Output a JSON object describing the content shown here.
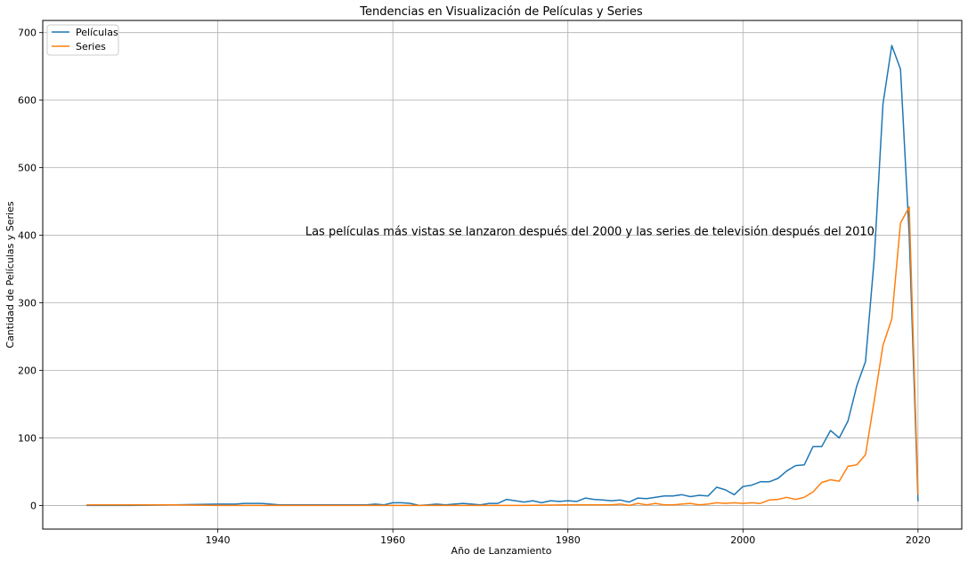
{
  "chart_data": {
    "type": "line",
    "title": "Tendencias en Visualización de Películas y Series",
    "xlabel": "Año de Lanzamiento",
    "ylabel": "Cantidad de Películas y Series",
    "xlim": [
      1920,
      2025
    ],
    "ylim": [
      -35,
      718
    ],
    "xticks": [
      1940,
      1960,
      1980,
      2000,
      2020
    ],
    "yticks": [
      0,
      100,
      200,
      300,
      400,
      500,
      600,
      700
    ],
    "grid": true,
    "legend_position": "top-left",
    "annotation": {
      "text": "Las películas más vistas se lanzaron después del 2000 y las series de televisión después del 2010",
      "x": 1950,
      "y": 400
    },
    "series": [
      {
        "name": "Películas",
        "color": "#1f77b4",
        "x": [
          1925,
          1930,
          1935,
          1940,
          1942,
          1943,
          1945,
          1946,
          1947,
          1950,
          1955,
          1957,
          1958,
          1959,
          1960,
          1961,
          1962,
          1963,
          1964,
          1965,
          1966,
          1967,
          1968,
          1969,
          1970,
          1971,
          1972,
          1973,
          1974,
          1975,
          1976,
          1977,
          1978,
          1979,
          1980,
          1981,
          1982,
          1983,
          1984,
          1985,
          1986,
          1987,
          1988,
          1989,
          1990,
          1991,
          1992,
          1993,
          1994,
          1995,
          1996,
          1997,
          1998,
          1999,
          2000,
          2001,
          2002,
          2003,
          2004,
          2005,
          2006,
          2007,
          2008,
          2009,
          2010,
          2011,
          2012,
          2013,
          2014,
          2015,
          2016,
          2017,
          2018,
          2019,
          2020
        ],
        "y": [
          0,
          0,
          1,
          2,
          2,
          3,
          3,
          2,
          1,
          1,
          1,
          1,
          2,
          1,
          4,
          4,
          3,
          0,
          1,
          2,
          1,
          2,
          3,
          2,
          1,
          3,
          3,
          9,
          7,
          5,
          7,
          4,
          7,
          6,
          7,
          6,
          11,
          9,
          8,
          7,
          8,
          5,
          11,
          10,
          12,
          14,
          14,
          16,
          13,
          15,
          14,
          27,
          23,
          16,
          28,
          30,
          35,
          35,
          40,
          51,
          59,
          60,
          87,
          87,
          111,
          100,
          125,
          177,
          213,
          365,
          594,
          681,
          646,
          400,
          6
        ]
      },
      {
        "name": "Series",
        "color": "#ff7f0e",
        "x": [
          1925,
          1930,
          1935,
          1940,
          1945,
          1950,
          1955,
          1960,
          1965,
          1970,
          1975,
          1980,
          1985,
          1986,
          1987,
          1988,
          1989,
          1990,
          1991,
          1992,
          1993,
          1994,
          1995,
          1996,
          1997,
          1998,
          1999,
          2000,
          2001,
          2002,
          2003,
          2004,
          2005,
          2006,
          2007,
          2008,
          2009,
          2010,
          2011,
          2012,
          2013,
          2014,
          2015,
          2016,
          2017,
          2018,
          2019,
          2020
        ],
        "y": [
          1,
          1,
          1,
          0,
          0,
          0,
          0,
          0,
          0,
          0,
          0,
          1,
          1,
          2,
          0,
          3,
          1,
          3,
          1,
          1,
          2,
          3,
          1,
          2,
          4,
          3,
          4,
          3,
          4,
          3,
          8,
          9,
          12,
          9,
          12,
          20,
          34,
          38,
          36,
          58,
          60,
          75,
          155,
          237,
          276,
          418,
          442,
          16
        ]
      }
    ]
  }
}
